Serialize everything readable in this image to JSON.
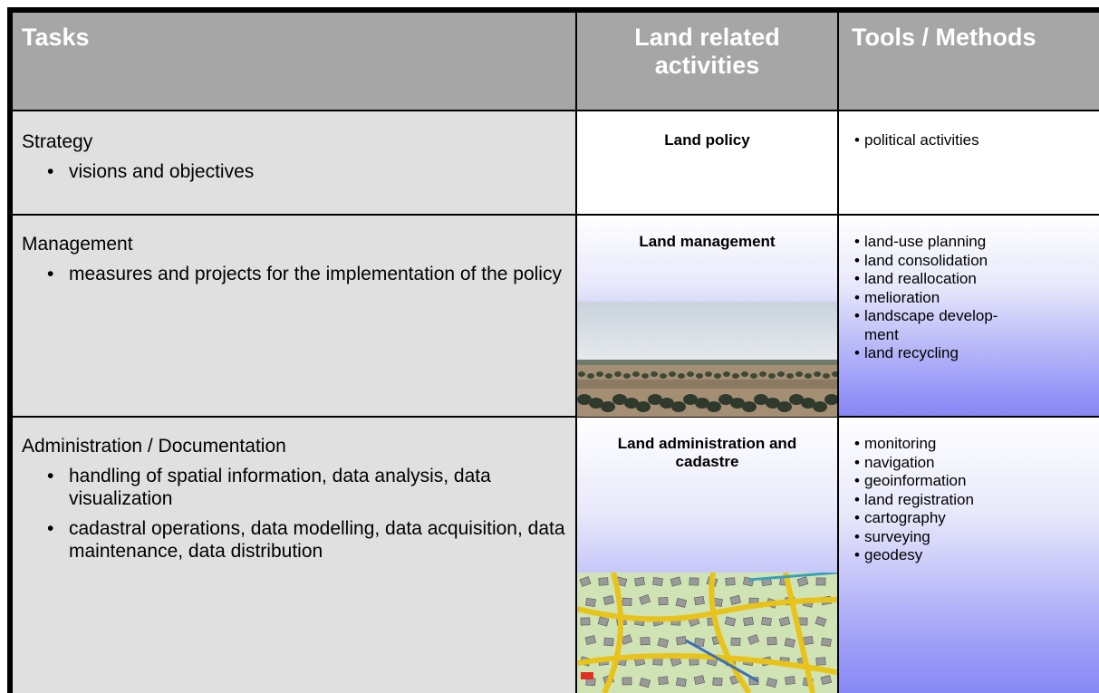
{
  "table": {
    "headers": [
      "Tasks",
      "Land related activities",
      "Tools / Methods"
    ],
    "rows": [
      {
        "task": {
          "title": "Strategy",
          "bullets": [
            "visions and objectives"
          ]
        },
        "activity": "Land policy",
        "tools": [
          "political activities"
        ]
      },
      {
        "task": {
          "title": "Management",
          "bullets": [
            "measures and projects for the implementation of the policy"
          ]
        },
        "activity": "Land management",
        "tools": [
          "land-use planning",
          "land consolidation",
          "land reallocation",
          "melioration",
          "landscape develop-\nment",
          "land recycling"
        ]
      },
      {
        "task": {
          "title": "Administration / Documentation",
          "bullets": [
            "handling of spatial information, data analysis, data visualization",
            "cadastral operations, data modelling, data acquisition, data maintenance, data distribution"
          ]
        },
        "activity": "Land administration and cadastre",
        "tools": [
          "monitoring",
          "navigation",
          "geoinformation",
          "land registration",
          "cartography",
          "surveying",
          "geodesy"
        ]
      }
    ]
  }
}
